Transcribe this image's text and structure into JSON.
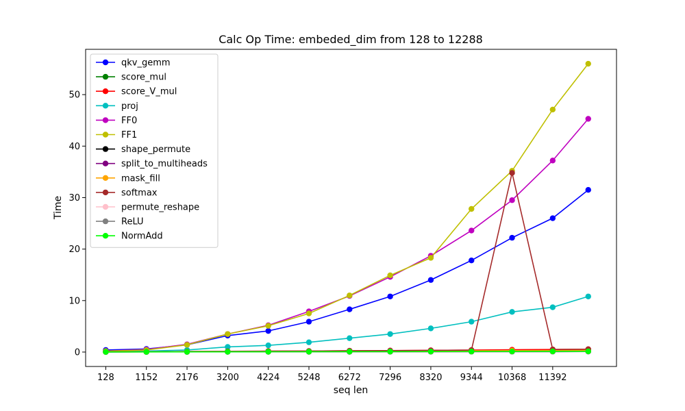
{
  "chart_data": {
    "type": "line",
    "title": "Calc Op Time: embeded_dim from 128 to 12288",
    "xlabel": "seq len",
    "ylabel": "Time",
    "x": [
      128,
      1152,
      2176,
      3200,
      4224,
      5248,
      6272,
      7296,
      8320,
      9344,
      10368,
      11392,
      12288
    ],
    "x_ticks": [
      128,
      1152,
      2176,
      3200,
      4224,
      5248,
      6272,
      7296,
      8320,
      9344,
      10368,
      11392
    ],
    "y_ticks": [
      0,
      10,
      20,
      30,
      40,
      50
    ],
    "xlim": [
      -380,
      13000
    ],
    "ylim": [
      -2.8,
      58.8
    ],
    "grid": false,
    "legend_position": "top-left",
    "series": [
      {
        "name": "qkv_gemm",
        "color": "#0000ff",
        "values": [
          0.4,
          0.6,
          1.4,
          3.2,
          4.1,
          5.9,
          8.3,
          10.8,
          14.0,
          17.8,
          22.2,
          26.0,
          31.5
        ]
      },
      {
        "name": "score_mul",
        "color": "#008000",
        "values": [
          0.05,
          0.08,
          0.1,
          0.12,
          0.12,
          0.14,
          0.15,
          0.16,
          0.17,
          0.18,
          0.2,
          0.22,
          0.24
        ]
      },
      {
        "name": "score_V_mul",
        "color": "#ff0000",
        "values": [
          0.05,
          0.08,
          0.1,
          0.15,
          0.18,
          0.2,
          0.25,
          0.28,
          0.33,
          0.38,
          0.45,
          0.5,
          0.55
        ]
      },
      {
        "name": "proj",
        "color": "#00bfbf",
        "values": [
          0.1,
          0.2,
          0.4,
          1.0,
          1.3,
          1.9,
          2.7,
          3.5,
          4.6,
          5.9,
          7.8,
          8.7,
          10.8
        ]
      },
      {
        "name": "FF0",
        "color": "#bf00bf",
        "values": [
          0.2,
          0.5,
          1.5,
          3.5,
          5.2,
          7.9,
          10.9,
          14.6,
          18.7,
          23.6,
          29.5,
          37.2,
          45.3
        ]
      },
      {
        "name": "FF1",
        "color": "#bfbf00",
        "values": [
          0.2,
          0.4,
          1.4,
          3.5,
          5.1,
          7.5,
          11.0,
          14.9,
          18.3,
          27.8,
          35.2,
          47.1,
          56.0
        ]
      },
      {
        "name": "shape_permute",
        "color": "#000000",
        "values": [
          0.02,
          0.03,
          0.04,
          0.05,
          0.05,
          0.06,
          0.06,
          0.07,
          0.07,
          0.08,
          0.08,
          0.09,
          0.1
        ]
      },
      {
        "name": "split_to_multiheads",
        "color": "#800080",
        "values": [
          0.02,
          0.03,
          0.04,
          0.05,
          0.05,
          0.06,
          0.06,
          0.07,
          0.07,
          0.08,
          0.08,
          0.09,
          0.1
        ]
      },
      {
        "name": "mask_fill",
        "color": "#ffa500",
        "values": [
          0.03,
          0.05,
          0.08,
          0.1,
          0.12,
          0.15,
          0.18,
          0.2,
          0.22,
          0.25,
          0.28,
          0.3,
          0.33
        ]
      },
      {
        "name": "softmax",
        "color": "#a52a2a",
        "values": [
          0.05,
          0.08,
          0.1,
          0.15,
          0.18,
          0.2,
          0.25,
          0.28,
          0.33,
          0.38,
          34.8,
          0.5,
          0.55
        ]
      },
      {
        "name": "permute_reshape",
        "color": "#ffc0cb",
        "values": [
          0.02,
          0.03,
          0.04,
          0.05,
          0.05,
          0.06,
          0.06,
          0.07,
          0.07,
          0.08,
          0.08,
          0.09,
          0.1
        ]
      },
      {
        "name": "ReLU",
        "color": "#808080",
        "values": [
          0.01,
          0.02,
          0.03,
          0.04,
          0.05,
          0.06,
          0.07,
          0.08,
          0.09,
          0.1,
          0.11,
          0.12,
          0.13
        ]
      },
      {
        "name": "NormAdd",
        "color": "#00ff00",
        "values": [
          0.02,
          0.03,
          0.04,
          0.05,
          0.06,
          0.07,
          0.08,
          0.09,
          0.1,
          0.11,
          0.12,
          0.13,
          0.14
        ]
      }
    ]
  }
}
